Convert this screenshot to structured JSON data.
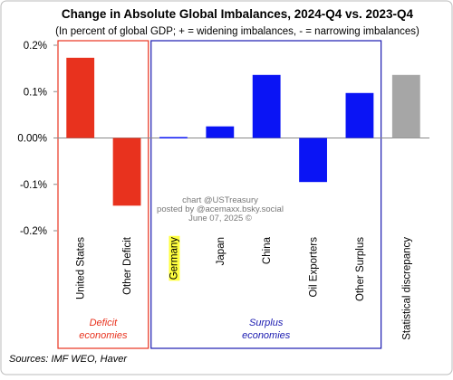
{
  "chart_data": {
    "type": "bar",
    "title": "Change in Absolute Global Imbalances, 2024-Q4 vs. 2023-Q4",
    "subtitle": "(In percent of global GDP; + = widening imbalances, - = narrowing imbalances)",
    "categories": [
      "United States",
      "Other Deficit",
      "Germany",
      "Japan",
      "China",
      "Oil Exporters",
      "Other Surplus",
      "Statistical discrepancy"
    ],
    "values": [
      0.173,
      -0.146,
      0.002,
      0.025,
      0.136,
      -0.095,
      0.097,
      0.136
    ],
    "colors": [
      "#e8321e",
      "#e8321e",
      "#0a14f5",
      "#0a14f5",
      "#0a14f5",
      "#0a14f5",
      "#0a14f5",
      "#a6a6a6"
    ],
    "highlighted_categories": [
      "Germany"
    ],
    "highlight_color": "#ffff40",
    "ylim": [
      -0.2,
      0.2
    ],
    "yticks": [
      {
        "value": 0.2,
        "label": "0.2%"
      },
      {
        "value": 0.1,
        "label": "0.1%"
      },
      {
        "value": 0,
        "label": "0.00%"
      },
      {
        "value": -0.1,
        "label": "-0.1%"
      },
      {
        "value": -0.2,
        "label": "-0.2%"
      }
    ],
    "groups": [
      {
        "label": [
          "Deficit",
          "economies"
        ],
        "color": "#e8321e"
      },
      {
        "label": [
          "Surplus",
          "economies"
        ],
        "color": "#1a1ab0"
      }
    ],
    "watermark": [
      "chart @USTreasury",
      "posted by @acemaxx.bsky.social",
      "June 07, 2025 ©"
    ],
    "source": "Sources: IMF WEO, Haver"
  }
}
